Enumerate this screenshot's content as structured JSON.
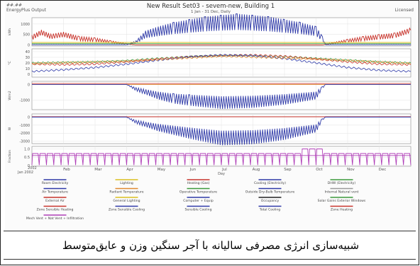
{
  "header": {
    "version": "##.##",
    "product": "EnergyPlus Output",
    "title": "New Result Set03 - sevem-new, Building 1",
    "subtitle": "1 Jan - 31 Dec, Daily",
    "license": "Licensed"
  },
  "caption": "شبیه‌سازی انرژی مصرفی سالیانه با آجر سنگین وزن و عایق‌متوسط",
  "colors": {
    "red": "#c8342c",
    "blue": "#2f3aa8",
    "green": "#3c9a3c",
    "yellow": "#d9c020",
    "orange": "#e08a30",
    "purple": "#b040b8",
    "black": "#222222",
    "gray": "#9a9a9a"
  },
  "chart_data": [
    {
      "type": "line",
      "ylabel": "kWh",
      "yticks": [
        "1000",
        "500",
        "0"
      ],
      "ylim": [
        -50,
        1300
      ],
      "x_unit": "month",
      "series": [
        {
          "color": "red",
          "values": [
            [
              0,
              350
            ],
            [
              0.3,
              600
            ],
            [
              0.6,
              400
            ],
            [
              1,
              500
            ],
            [
              1.5,
              300
            ],
            [
              2,
              250
            ],
            [
              2.5,
              150
            ],
            [
              3,
              50
            ],
            [
              3.3,
              0
            ],
            [
              9.2,
              0
            ],
            [
              9.5,
              80
            ],
            [
              10,
              200
            ],
            [
              10.5,
              300
            ],
            [
              11,
              380
            ],
            [
              11.5,
              450
            ],
            [
              12,
              700
            ]
          ]
        },
        {
          "color": "blue",
          "values": [
            [
              0,
              10
            ],
            [
              3,
              10
            ],
            [
              3.3,
              150
            ],
            [
              3.6,
              500
            ],
            [
              4,
              650
            ],
            [
              4.5,
              800
            ],
            [
              5,
              900
            ],
            [
              5.5,
              1000
            ],
            [
              6,
              1050
            ],
            [
              6.5,
              1100
            ],
            [
              7,
              1050
            ],
            [
              7.5,
              1000
            ],
            [
              8,
              900
            ],
            [
              8.5,
              800
            ],
            [
              9,
              650
            ],
            [
              9.2,
              300
            ],
            [
              9.3,
              10
            ],
            [
              12,
              10
            ]
          ]
        },
        {
          "color": "yellow",
          "values": [
            [
              0,
              120
            ],
            [
              12,
              120
            ]
          ]
        },
        {
          "color": "green",
          "values": [
            [
              0,
              60
            ],
            [
              12,
              60
            ]
          ]
        }
      ]
    },
    {
      "type": "line",
      "ylabel": "°C",
      "yticks": [
        "40",
        "30",
        "20",
        "10",
        "0"
      ],
      "ylim": [
        -5,
        45
      ],
      "x_unit": "month",
      "series": [
        {
          "color": "green",
          "values": [
            [
              0,
              20
            ],
            [
              1,
              21
            ],
            [
              2,
              22
            ],
            [
              3,
              24
            ],
            [
              4,
              28
            ],
            [
              5,
              31
            ],
            [
              6,
              33
            ],
            [
              7,
              33
            ],
            [
              8,
              31
            ],
            [
              9,
              28
            ],
            [
              10,
              25
            ],
            [
              11,
              22
            ],
            [
              12,
              20
            ]
          ]
        },
        {
          "color": "red",
          "values": [
            [
              0,
              18
            ],
            [
              1,
              17
            ],
            [
              2,
              18
            ],
            [
              3,
              22
            ],
            [
              4,
              27
            ],
            [
              5,
              31
            ],
            [
              6,
              33
            ],
            [
              7,
              34
            ],
            [
              8,
              32
            ],
            [
              9,
              27
            ],
            [
              10,
              22
            ],
            [
              11,
              18
            ],
            [
              12,
              17
            ]
          ]
        },
        {
          "color": "blue",
          "values": [
            [
              0,
              5
            ],
            [
              1,
              8
            ],
            [
              2,
              12
            ],
            [
              3,
              18
            ],
            [
              4,
              25
            ],
            [
              5,
              31
            ],
            [
              6,
              34
            ],
            [
              7,
              33
            ],
            [
              8,
              28
            ],
            [
              9,
              20
            ],
            [
              10,
              12
            ],
            [
              11,
              7
            ],
            [
              12,
              5
            ]
          ]
        },
        {
          "color": "orange",
          "values": [
            [
              0,
              19
            ],
            [
              3,
              23
            ],
            [
              6,
              32
            ],
            [
              9,
              27
            ],
            [
              12,
              19
            ]
          ]
        }
      ]
    },
    {
      "type": "line",
      "ylabel": "W/m2",
      "yticks": [
        "0",
        "-1000"
      ],
      "ylim": [
        -1600,
        200
      ],
      "x_unit": "month",
      "series": [
        {
          "color": "orange",
          "values": [
            [
              0,
              0
            ],
            [
              12,
              0
            ]
          ]
        },
        {
          "color": "red",
          "values": [
            [
              0,
              60
            ],
            [
              12,
              60
            ]
          ]
        },
        {
          "color": "blue",
          "values": [
            [
              0,
              0
            ],
            [
              3,
              0
            ],
            [
              3.3,
              -300
            ],
            [
              4,
              -700
            ],
            [
              4.5,
              -900
            ],
            [
              5,
              -1000
            ],
            [
              6,
              -1150
            ],
            [
              7,
              -1100
            ],
            [
              8,
              -950
            ],
            [
              9,
              -700
            ],
            [
              9.2,
              -200
            ],
            [
              9.3,
              0
            ],
            [
              12,
              0
            ]
          ]
        }
      ]
    },
    {
      "type": "line",
      "ylabel": "W",
      "yticks": [
        "0",
        "-1000",
        "-2000",
        "-3000"
      ],
      "ylim": [
        -3300,
        400
      ],
      "x_unit": "month",
      "series": [
        {
          "color": "red",
          "values": [
            [
              0,
              50
            ],
            [
              12,
              50
            ]
          ]
        },
        {
          "color": "blue",
          "values": [
            [
              0,
              0
            ],
            [
              3,
              0
            ],
            [
              3.3,
              -600
            ],
            [
              4,
              -1300
            ],
            [
              5,
              -2000
            ],
            [
              6,
              -2600
            ],
            [
              7,
              -2500
            ],
            [
              8,
              -2100
            ],
            [
              9,
              -1400
            ],
            [
              9.2,
              -300
            ],
            [
              9.3,
              0
            ],
            [
              12,
              0
            ]
          ]
        }
      ]
    },
    {
      "type": "line",
      "ylabel": "Fraction",
      "yticks": [
        "1.0",
        "0.5",
        "0"
      ],
      "ylim": [
        -0.05,
        1.15
      ],
      "x_unit": "month",
      "series": [
        {
          "color": "purple",
          "values": [
            [
              0,
              0.6
            ],
            [
              12,
              0.6
            ]
          ]
        }
      ]
    }
  ],
  "axis": {
    "months": [
      "Feb",
      "Mar",
      "Apr",
      "May",
      "Jun",
      "Jul",
      "Aug",
      "Sep",
      "Oct",
      "Nov",
      "Dec"
    ],
    "start_label_1": "2002",
    "start_label_2": "Jan 2002",
    "xlabel": "Day"
  },
  "legend": [
    {
      "label": "Room Electricity",
      "color": "blue"
    },
    {
      "label": "Lighting",
      "color": "yellow"
    },
    {
      "label": "Heating (Gas)",
      "color": "red"
    },
    {
      "label": "Cooling (Electricity)",
      "color": "blue"
    },
    {
      "label": "DHW (Electricity)",
      "color": "green"
    },
    {
      "label": "Air Temperature",
      "color": "blue"
    },
    {
      "label": "Radiant Temperature",
      "color": "orange"
    },
    {
      "label": "Operative Temperature",
      "color": "green"
    },
    {
      "label": "Outside Dry-Bulb Temperature",
      "color": "blue"
    },
    {
      "label": "Internal Natural vent",
      "color": "gray"
    },
    {
      "label": "External Air",
      "color": "red"
    },
    {
      "label": "General Lighting",
      "color": "yellow"
    },
    {
      "label": "Computer + Equip",
      "color": "blue"
    },
    {
      "label": "Occupancy",
      "color": "black"
    },
    {
      "label": "Solar Gains Exterior Windows",
      "color": "green"
    },
    {
      "label": "Zone Sensible Heating",
      "color": "red"
    },
    {
      "label": "Zone Sensible Cooling",
      "color": "blue"
    },
    {
      "label": "Sensible Cooling",
      "color": "blue"
    },
    {
      "label": "Total Cooling",
      "color": "blue"
    },
    {
      "label": "Zone Heating",
      "color": "red"
    },
    {
      "label": "Mech Vent + Nat Vent + Infiltration",
      "color": "purple"
    }
  ]
}
